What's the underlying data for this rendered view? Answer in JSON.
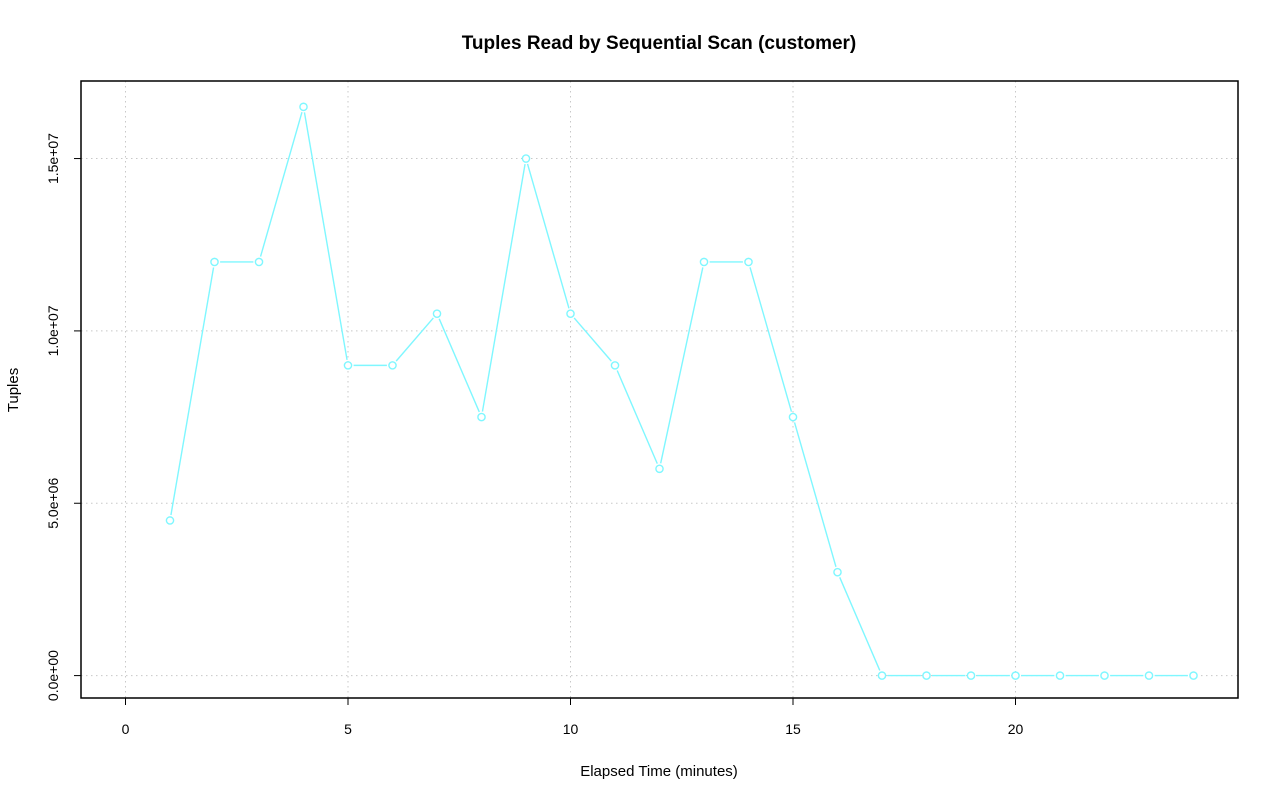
{
  "chart_data": {
    "type": "line",
    "title": "Tuples Read by Sequential Scan (customer)",
    "xlabel": "Elapsed Time (minutes)",
    "ylabel": "Tuples",
    "xlim": [
      -1,
      25
    ],
    "ylim": [
      -650000,
      17250000
    ],
    "x_ticks": [
      0,
      5,
      10,
      15,
      20
    ],
    "x_tick_labels": [
      "0",
      "5",
      "10",
      "15",
      "20"
    ],
    "y_ticks": [
      0,
      5000000,
      10000000,
      15000000
    ],
    "y_tick_labels": [
      "0.0e+00",
      "5.0e+06",
      "1.0e+07",
      "1.5e+07"
    ],
    "grid": true,
    "series": [
      {
        "color": "#7ff7ff",
        "marker": "open-circle",
        "x": [
          1,
          2,
          3,
          4,
          5,
          6,
          7,
          8,
          9,
          10,
          11,
          12,
          13,
          14,
          15,
          16,
          17,
          18,
          19,
          20,
          21,
          22,
          23,
          24
        ],
        "values": [
          4500000,
          12000000,
          12000000,
          16500000,
          9000000,
          9000000,
          10500000,
          7500000,
          15000000,
          10500000,
          9000000,
          6000000,
          12000000,
          12000000,
          7500000,
          3000000,
          0,
          0,
          0,
          0,
          0,
          0,
          0,
          0
        ]
      }
    ]
  }
}
